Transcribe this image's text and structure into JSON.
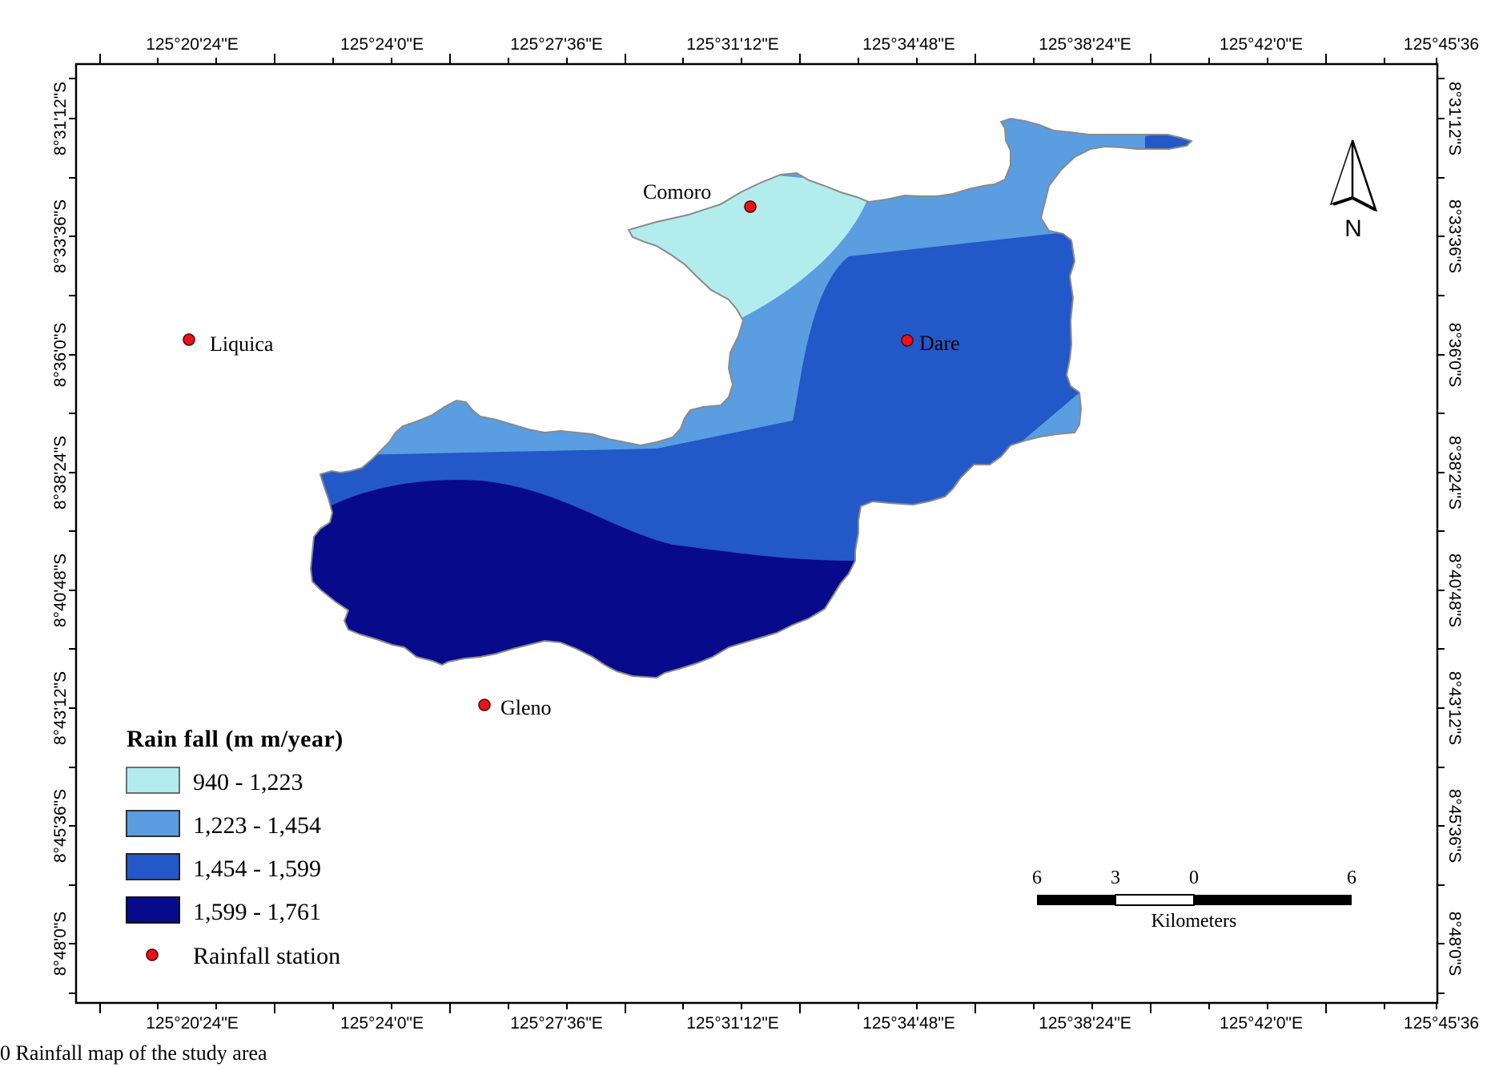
{
  "map": {
    "top_longitude_labels": [
      "125°20'24\"E",
      "125°24'0\"E",
      "125°27'36\"E",
      "125°31'12\"E",
      "125°34'48\"E",
      "125°38'24\"E",
      "125°42'0\"E",
      "125°45'36"
    ],
    "bottom_longitude_labels": [
      "125°20'24\"E",
      "125°24'0\"E",
      "125°27'36\"E",
      "125°31'12\"E",
      "125°34'48\"E",
      "125°38'24\"E",
      "125°42'0\"E",
      "125°45'36"
    ],
    "left_latitude_labels": [
      "8°31'12\"S",
      "8°33'36\"S",
      "8°36'0\"S",
      "8°38'24\"S",
      "8°40'48\"S",
      "8°43'12\"S",
      "8°45'36\"S",
      "8°48'0\"S"
    ],
    "right_latitude_labels": [
      "8°31'12\"S",
      "8°33'36\"S",
      "8°36'0\"S",
      "8°38'24\"S",
      "8°40'48\"S",
      "8°43'12\"S",
      "8°45'36\"S",
      "8°48'0\"S"
    ],
    "stations": [
      {
        "name": "Comoro"
      },
      {
        "name": "Liquica"
      },
      {
        "name": "Dare"
      },
      {
        "name": "Gleno"
      }
    ],
    "north_arrow_label": "N",
    "zones": [
      {
        "class": "940 - 1,223",
        "color": "#b3ecec"
      },
      {
        "class": "1,223 - 1,454",
        "color": "#5a9de0"
      },
      {
        "class": "1,454 - 1,599",
        "color": "#2358c8"
      },
      {
        "class": "1,599 - 1,761",
        "color": "#070a8a"
      }
    ]
  },
  "legend": {
    "title": "Rain fall (m m/year)",
    "items": [
      {
        "label": "940 - 1,223",
        "color": "#b3ecec"
      },
      {
        "label": "1,223 - 1,454",
        "color": "#5a9de0"
      },
      {
        "label": "1,454 - 1,599",
        "color": "#2358c8"
      },
      {
        "label": "1,599 - 1,761",
        "color": "#070a8a"
      }
    ],
    "station_label": "Rainfall station",
    "station_color": "#e8141a"
  },
  "scale_bar": {
    "tick_labels": [
      "6",
      "3",
      "0",
      "6"
    ],
    "unit": "Kilometers"
  },
  "caption": "0  Rainfall map of the study area"
}
